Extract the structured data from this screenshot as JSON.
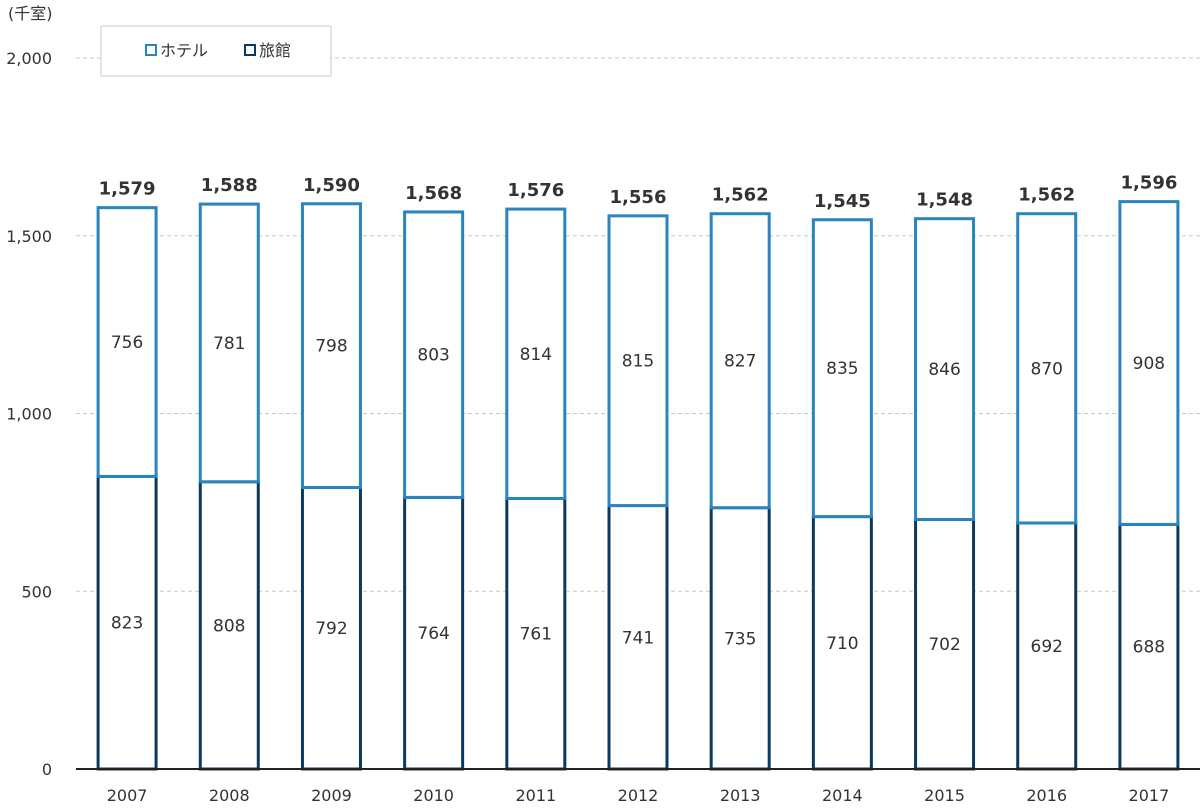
{
  "chart_data": {
    "type": "bar",
    "stacked": true,
    "unit_label": "(千室)",
    "categories": [
      "2007",
      "2008",
      "2009",
      "2010",
      "2011",
      "2012",
      "2013",
      "2014",
      "2015",
      "2016",
      "2017"
    ],
    "series": [
      {
        "name": "旅館",
        "color": "#0d3a5c",
        "values": [
          823,
          808,
          792,
          764,
          761,
          741,
          735,
          710,
          702,
          692,
          688
        ]
      },
      {
        "name": "ホテル",
        "color": "#2a84bd",
        "values": [
          756,
          781,
          798,
          803,
          814,
          815,
          827,
          835,
          846,
          870,
          908
        ]
      }
    ],
    "totals": [
      "1,579",
      "1,588",
      "1,590",
      "1,568",
      "1,576",
      "1,556",
      "1,562",
      "1,545",
      "1,548",
      "1,562",
      "1,596"
    ],
    "ylim": [
      0,
      2000
    ],
    "yticks": [
      0,
      500,
      1000,
      1500,
      2000
    ],
    "ytick_labels": [
      "0",
      "500",
      "1,000",
      "1,500",
      "2,000"
    ],
    "grid": true,
    "legend": {
      "placement": "top-left",
      "order": [
        "ホテル",
        "旅館"
      ]
    }
  }
}
